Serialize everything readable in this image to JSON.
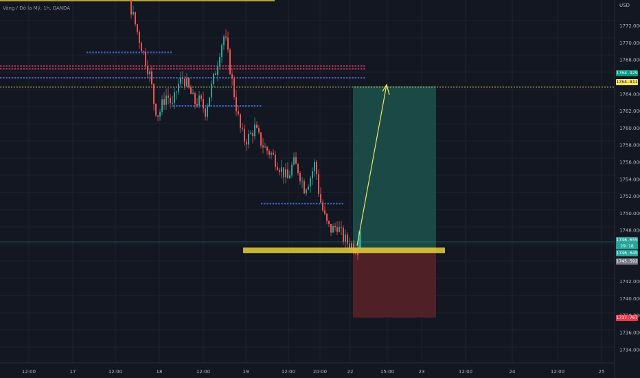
{
  "symbol_line": "Vàng / Đô la Mỹ, 1h, OANDA",
  "currency": "USD",
  "price_axis": {
    "min": 1732.8,
    "max": 1776.0,
    "ticks": [
      "1772.000",
      "1770.000",
      "1768.000",
      "1764.000",
      "1762.000",
      "1760.000",
      "1758.000",
      "1756.000",
      "1754.000",
      "1752.000",
      "1750.000",
      "1748.000",
      "1742.000",
      "1740.000",
      "1738.000",
      "1736.000",
      "1734.000"
    ]
  },
  "time_axis": {
    "labels": [
      "12:00",
      "17",
      "12:00",
      "18",
      "12:00",
      "19",
      "12:00",
      "20:00",
      "22",
      "15:00",
      "23",
      "12:00",
      "24",
      "12:00",
      "25"
    ]
  },
  "price_labels": {
    "target": "1764.929",
    "dotted_level": "1764.811",
    "last_price": "1746.655",
    "countdown": "29:18",
    "bid": "1746.645",
    "entry": "1745.592",
    "stop": "1737.767"
  },
  "position": {
    "entry": 1745.592,
    "target": 1764.929,
    "stop": 1737.767
  },
  "support_level": 1745.6,
  "colors": {
    "background": "#131722",
    "bull": "#26a69a",
    "bear": "#ef5350",
    "support_zone": "#e8cf3c",
    "target_zone": "#1f5b53",
    "stop_zone": "#5b2328",
    "dotted_level": "#f5e663",
    "target_label": "#089981",
    "stop_label": "#f23645",
    "entry_label": "#787b86"
  }
}
